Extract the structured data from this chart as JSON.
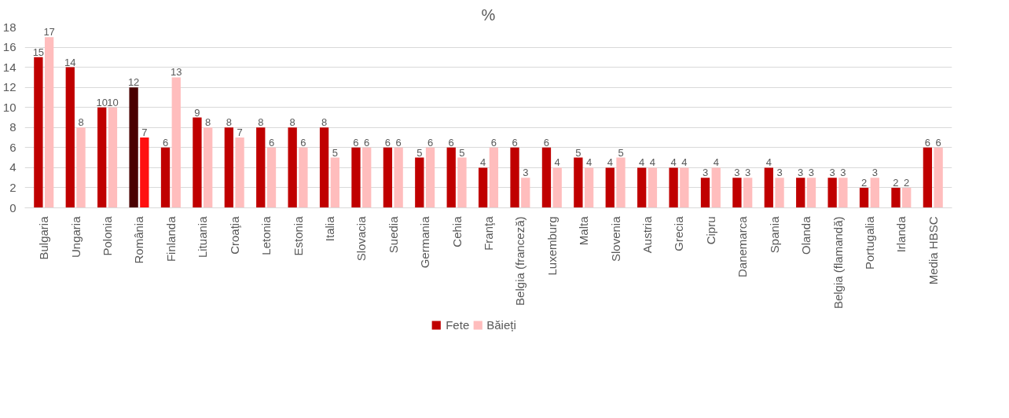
{
  "chart_data": {
    "type": "bar",
    "title": "%",
    "categories": [
      "Bulgaria",
      "Ungaria",
      "Polonia",
      "România",
      "Finlanda",
      "Lituania",
      "Croaţia",
      "Letonia",
      "Estonia",
      "Italia",
      "Slovacia",
      "Suedia",
      "Germania",
      "Cehia",
      "Franţa",
      "Belgia (franceză)",
      "Luxemburg",
      "Malta",
      "Slovenia",
      "Austria",
      "Grecia",
      "Cipru",
      "Danemarca",
      "Spania",
      "Olanda",
      "Belgia (flamandă)",
      "Portugalia",
      "Irlanda",
      "Media HBSC"
    ],
    "series": [
      {
        "name": "Fete",
        "color": "#c00000",
        "colors": [
          "#c00000",
          "#c00000",
          "#c00000",
          "#4a0000",
          "#c00000",
          "#c00000",
          "#c00000",
          "#c00000",
          "#c00000",
          "#c00000",
          "#c00000",
          "#c00000",
          "#c00000",
          "#c00000",
          "#c00000",
          "#c00000",
          "#c00000",
          "#c00000",
          "#c00000",
          "#c00000",
          "#c00000",
          "#c00000",
          "#c00000",
          "#c00000",
          "#c00000",
          "#c00000",
          "#c00000",
          "#c00000",
          "#c00000"
        ],
        "values": [
          15,
          14,
          10,
          12,
          6,
          9,
          8,
          8,
          8,
          8,
          6,
          6,
          5,
          6,
          4,
          6,
          6,
          5,
          4,
          4,
          4,
          3,
          3,
          4,
          3,
          3,
          2,
          2,
          6
        ]
      },
      {
        "name": "Băieți",
        "color": "#ffbdbd",
        "colors": [
          "#ffbdbd",
          "#ffbdbd",
          "#ffbdbd",
          "#ff1010",
          "#ffbdbd",
          "#ffbdbd",
          "#ffbdbd",
          "#ffbdbd",
          "#ffbdbd",
          "#ffbdbd",
          "#ffbdbd",
          "#ffbdbd",
          "#ffbdbd",
          "#ffbdbd",
          "#ffbdbd",
          "#ffbdbd",
          "#ffbdbd",
          "#ffbdbd",
          "#ffbdbd",
          "#ffbdbd",
          "#ffbdbd",
          "#ffbdbd",
          "#ffbdbd",
          "#ffbdbd",
          "#ffbdbd",
          "#ffbdbd",
          "#ffbdbd",
          "#ffbdbd",
          "#ffbdbd"
        ],
        "values": [
          17,
          8,
          10,
          7,
          13,
          8,
          7,
          6,
          6,
          5,
          6,
          6,
          6,
          5,
          6,
          3,
          4,
          4,
          5,
          4,
          4,
          4,
          3,
          3,
          3,
          3,
          3,
          2,
          6
        ]
      }
    ],
    "ylim": [
      0,
      18
    ],
    "yticks": [
      0,
      2,
      4,
      6,
      8,
      10,
      12,
      14,
      16,
      18
    ],
    "grid": "y",
    "legend": "bottom",
    "data_labels": true
  }
}
